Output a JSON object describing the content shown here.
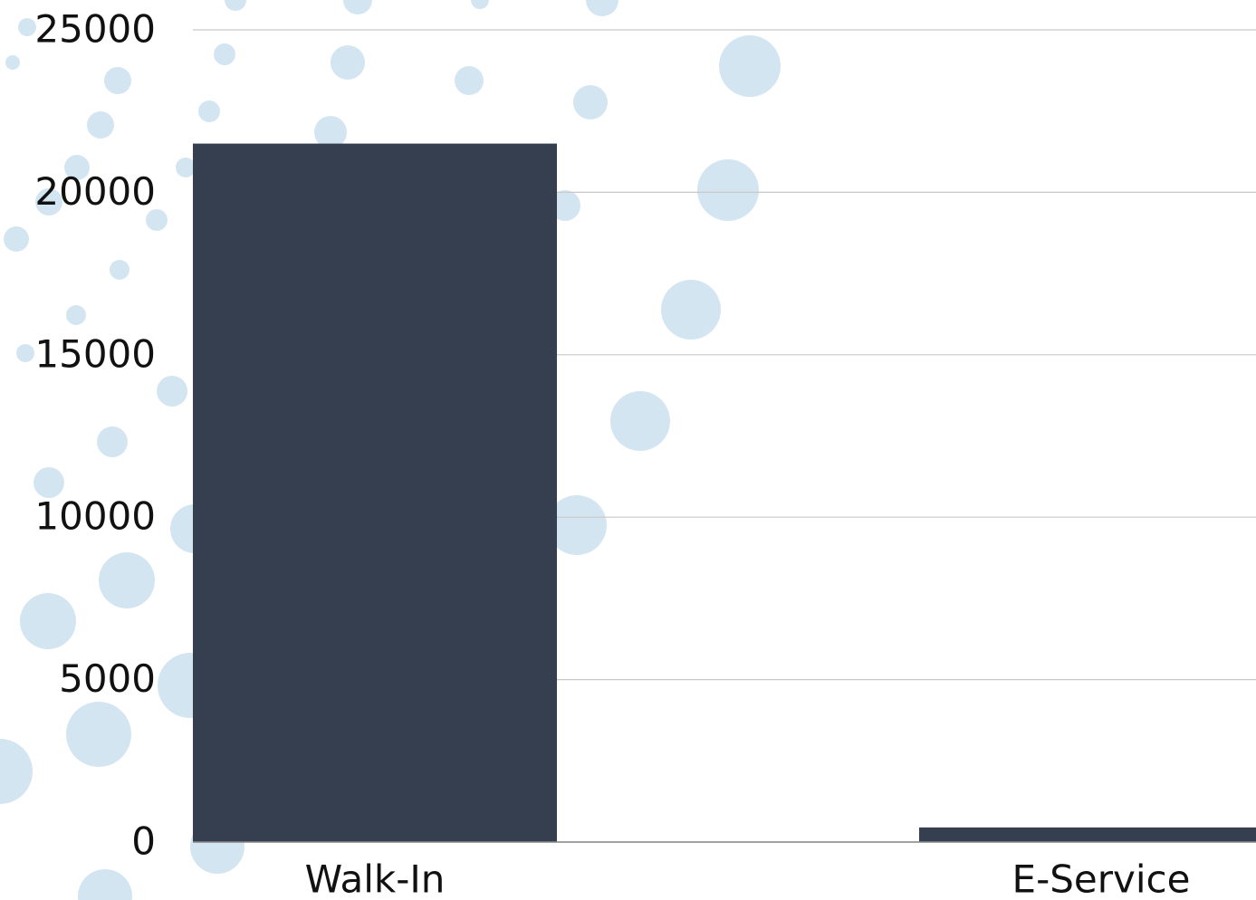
{
  "chart_data": {
    "type": "bar",
    "categories": [
      "Walk-In",
      "E-Service"
    ],
    "values": [
      21500,
      450
    ],
    "color": "#363f4f",
    "ylim": [
      0,
      25000
    ],
    "yticks": [
      0,
      5000,
      10000,
      15000,
      20000,
      25000
    ],
    "grid": true
  }
}
